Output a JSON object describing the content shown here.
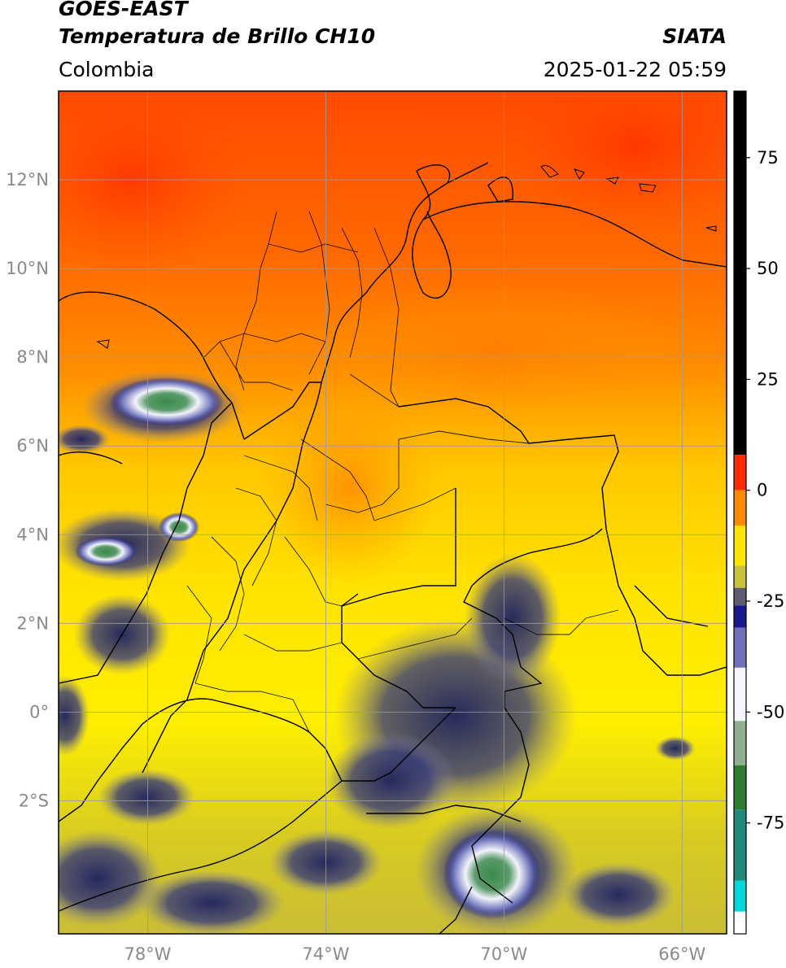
{
  "header": {
    "satellite": "GOES-EAST",
    "product": "Temperatura de Brillo CH10",
    "source": "SIATA",
    "region": "Colombia",
    "timestamp": "2025-01-22 05:59"
  },
  "map_axes": {
    "lon_range": [
      -80,
      -65
    ],
    "lat_range": [
      -5,
      14
    ],
    "lat_ticks": [
      {
        "value": 12,
        "label": "12°N"
      },
      {
        "value": 10,
        "label": "10°N"
      },
      {
        "value": 8,
        "label": "8°N"
      },
      {
        "value": 6,
        "label": "6°N"
      },
      {
        "value": 4,
        "label": "4°N"
      },
      {
        "value": 2,
        "label": "2°N"
      },
      {
        "value": 0,
        "label": "0°"
      },
      {
        "value": -2,
        "label": "2°S"
      }
    ],
    "lon_ticks": [
      {
        "value": -78,
        "label": "78°W"
      },
      {
        "value": -74,
        "label": "74°W"
      },
      {
        "value": -70,
        "label": "70°W"
      },
      {
        "value": -66,
        "label": "66°W"
      }
    ],
    "grid": true,
    "grid_color": "#9a9a9a"
  },
  "colorbar": {
    "range": [
      -100,
      90
    ],
    "ticks": [
      {
        "value": 75,
        "label": "75"
      },
      {
        "value": 50,
        "label": "50"
      },
      {
        "value": 25,
        "label": "25"
      },
      {
        "value": 0,
        "label": "0"
      },
      {
        "value": -25,
        "label": "-25"
      },
      {
        "value": -50,
        "label": "-50"
      },
      {
        "value": -75,
        "label": "-75"
      }
    ],
    "segments": [
      {
        "from": 8,
        "to": 90,
        "color": "#000000"
      },
      {
        "from": 0,
        "to": 8,
        "color": "#ff2a00"
      },
      {
        "from": -8,
        "to": 0,
        "color": "#ff8a00"
      },
      {
        "from": -17,
        "to": -8,
        "color": "#ffe600"
      },
      {
        "from": -22,
        "to": -17,
        "color": "#c9c23a"
      },
      {
        "from": -26,
        "to": -22,
        "color": "#5c5c6e"
      },
      {
        "from": -31,
        "to": -26,
        "color": "#1a1a8c"
      },
      {
        "from": -40,
        "to": -31,
        "color": "#6f72b8"
      },
      {
        "from": -52,
        "to": -40,
        "color": "#f5f5ff"
      },
      {
        "from": -62,
        "to": -52,
        "color": "#8fb08f"
      },
      {
        "from": -72,
        "to": -62,
        "color": "#2e7d32"
      },
      {
        "from": -88,
        "to": -72,
        "color": "#1f8a7a"
      },
      {
        "from": -95,
        "to": -88,
        "color": "#00d8d8"
      },
      {
        "from": -100,
        "to": -95,
        "color": "#ffffff"
      }
    ],
    "colors": {
      "warm": "#ff6a00",
      "hot": "#ff3a00",
      "mid": "#ffc400",
      "cool": "#ffee00",
      "olive": "#c8bd30",
      "cloud_blue": "#26286e",
      "cloud_white": "#eef0fa",
      "cloud_green": "#3b8a3b"
    }
  }
}
